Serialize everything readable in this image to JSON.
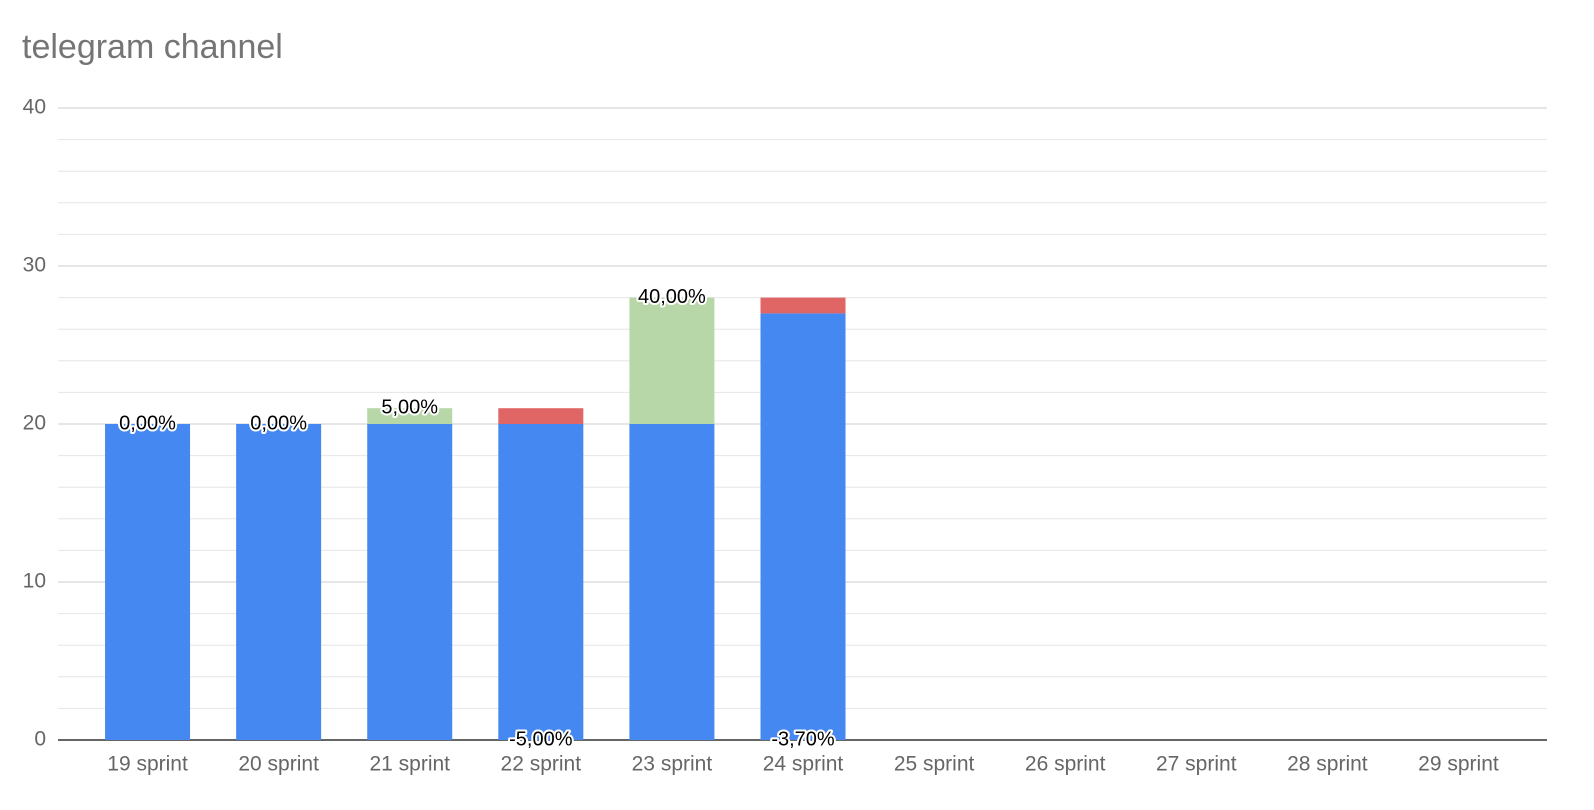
{
  "chart_data": {
    "type": "stacked_bar",
    "title": "telegram channel",
    "categories": [
      "19 sprint",
      "20 sprint",
      "21 sprint",
      "22 sprint",
      "23 sprint",
      "24 sprint",
      "25 sprint",
      "26 sprint",
      "27 sprint",
      "28 sprint",
      "29 sprint"
    ],
    "series": [
      {
        "color": "#4688f1",
        "values": [
          20,
          20,
          20,
          20,
          20,
          27,
          null,
          null,
          null,
          null,
          null
        ]
      },
      {
        "color": "#b7d7a8",
        "values": [
          0,
          0,
          1,
          0,
          8,
          0,
          null,
          null,
          null,
          null,
          null
        ]
      },
      {
        "color": "#e06666",
        "values": [
          0,
          0,
          0,
          1,
          0,
          1,
          null,
          null,
          null,
          null,
          null
        ]
      }
    ],
    "change": {
      "values": [
        0,
        0,
        5,
        -5,
        40,
        -3.7,
        null,
        null,
        null,
        null,
        null
      ],
      "value_labels": [
        "0,00%",
        "0,00%",
        "5,00%",
        "-5,00%",
        "40,00%",
        "-3,70%",
        null,
        null,
        null,
        null,
        null
      ]
    },
    "ylim": [
      0,
      40
    ],
    "yticks": [
      0,
      10,
      20,
      30,
      40
    ],
    "grid": true,
    "minor_grid_per_interval": 4
  }
}
